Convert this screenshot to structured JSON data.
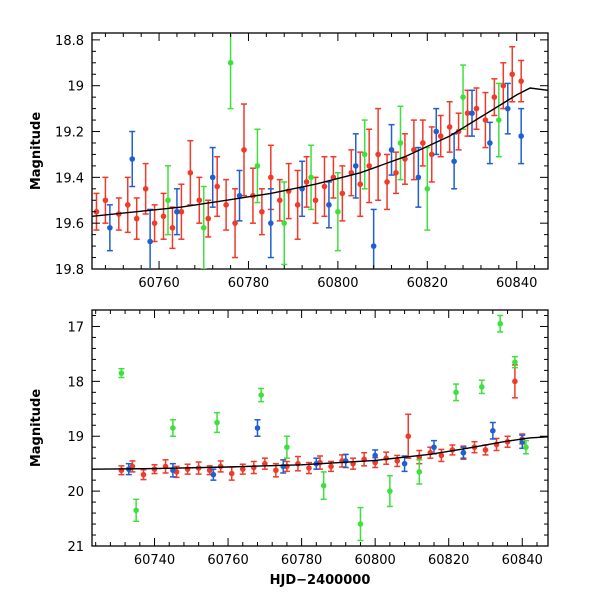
{
  "figure": {
    "xlabel": "HJD−2400000",
    "colors": {
      "blue": "#1f5fd0",
      "red": "#f03a2a",
      "green": "#3ee03e",
      "model": "#000000"
    }
  },
  "chart_data": [
    {
      "type": "scatter",
      "panel": "top",
      "title": "",
      "xlabel": "",
      "ylabel": "Magnitude",
      "xlim": [
        60745,
        60847
      ],
      "ylim": [
        19.8,
        18.77
      ],
      "y_inverted": true,
      "x_ticks": [
        60760,
        60780,
        60800,
        60820,
        60840
      ],
      "y_ticks": [
        18.8,
        19,
        19.2,
        19.4,
        19.6,
        19.8
      ],
      "x_tick_labels": [
        "60760",
        "60780",
        "60800",
        "60820",
        "60840"
      ],
      "y_tick_labels": [
        "18.8",
        "19",
        "19.2",
        "19.4",
        "19.6",
        "19.8"
      ],
      "grid": false,
      "series": [
        {
          "color": "red",
          "points": [
            [
              60746,
              19.55,
              0.08
            ],
            [
              60748,
              19.5,
              0.1
            ],
            [
              60751,
              19.56,
              0.07
            ],
            [
              60753,
              19.52,
              0.12
            ],
            [
              60755,
              19.58,
              0.09
            ],
            [
              60757,
              19.45,
              0.11
            ],
            [
              60759,
              19.6,
              0.08
            ],
            [
              60761,
              19.57,
              0.1
            ],
            [
              60763,
              19.62,
              0.09
            ],
            [
              60765,
              19.55,
              0.12
            ],
            [
              60767,
              19.38,
              0.14
            ],
            [
              60769,
              19.5,
              0.1
            ],
            [
              60771,
              19.58,
              0.08
            ],
            [
              60773,
              19.44,
              0.13
            ],
            [
              60775,
              19.52,
              0.11
            ],
            [
              60777,
              19.6,
              0.15
            ],
            [
              60779,
              19.28,
              0.2
            ],
            [
              60781,
              19.48,
              0.12
            ],
            [
              60783,
              19.55,
              0.1
            ],
            [
              60785,
              19.4,
              0.14
            ],
            [
              60787,
              19.5,
              0.09
            ],
            [
              60789,
              19.46,
              0.12
            ],
            [
              60791,
              19.52,
              0.15
            ],
            [
              60793,
              19.42,
              0.11
            ],
            [
              60795,
              19.5,
              0.1
            ],
            [
              60797,
              19.44,
              0.13
            ],
            [
              60799,
              19.4,
              0.09
            ],
            [
              60801,
              19.47,
              0.12
            ],
            [
              60803,
              19.38,
              0.1
            ],
            [
              60805,
              19.43,
              0.14
            ],
            [
              60807,
              19.35,
              0.16
            ],
            [
              60809,
              19.3,
              0.2
            ],
            [
              60811,
              19.42,
              0.12
            ],
            [
              60813,
              19.38,
              0.09
            ],
            [
              60815,
              19.32,
              0.11
            ],
            [
              60817,
              19.28,
              0.13
            ],
            [
              60819,
              19.25,
              0.1
            ],
            [
              60821,
              19.3,
              0.12
            ],
            [
              60823,
              19.22,
              0.09
            ],
            [
              60825,
              19.18,
              0.11
            ],
            [
              60827,
              19.2,
              0.08
            ],
            [
              60829,
              19.12,
              0.1
            ],
            [
              60831,
              19.1,
              0.09
            ],
            [
              60833,
              19.15,
              0.12
            ],
            [
              60835,
              19.05,
              0.08
            ],
            [
              60837,
              19.0,
              0.1
            ],
            [
              60839,
              18.95,
              0.12
            ],
            [
              60841,
              18.98,
              0.09
            ]
          ]
        },
        {
          "color": "blue",
          "points": [
            [
              60749,
              19.62,
              0.1
            ],
            [
              60754,
              19.32,
              0.12
            ],
            [
              60758,
              19.68,
              0.14
            ],
            [
              60764,
              19.55,
              0.1
            ],
            [
              60772,
              19.4,
              0.13
            ],
            [
              60778,
              19.48,
              0.11
            ],
            [
              60785,
              19.6,
              0.15
            ],
            [
              60792,
              19.45,
              0.12
            ],
            [
              60798,
              19.52,
              0.1
            ],
            [
              60804,
              19.35,
              0.14
            ],
            [
              60808,
              19.7,
              0.16
            ],
            [
              60812,
              19.28,
              0.11
            ],
            [
              60818,
              19.4,
              0.13
            ],
            [
              60822,
              19.2,
              0.1
            ],
            [
              60826,
              19.33,
              0.12
            ],
            [
              60830,
              19.12,
              0.1
            ],
            [
              60834,
              19.25,
              0.09
            ],
            [
              60838,
              19.1,
              0.11
            ],
            [
              60841,
              19.22,
              0.12
            ]
          ]
        },
        {
          "color": "green",
          "points": [
            [
              60762,
              19.5,
              0.15
            ],
            [
              60770,
              19.62,
              0.18
            ],
            [
              60776,
              18.9,
              0.2
            ],
            [
              60782,
              19.35,
              0.16
            ],
            [
              60788,
              19.6,
              0.18
            ],
            [
              60794,
              19.4,
              0.14
            ],
            [
              60800,
              19.55,
              0.17
            ],
            [
              60806,
              19.3,
              0.15
            ],
            [
              60814,
              19.25,
              0.16
            ],
            [
              60820,
              19.45,
              0.18
            ],
            [
              60828,
              19.05,
              0.14
            ],
            [
              60836,
              19.15,
              0.16
            ]
          ]
        }
      ],
      "model_curve": [
        [
          60745,
          19.57
        ],
        [
          60755,
          19.55
        ],
        [
          60765,
          19.53
        ],
        [
          60775,
          19.5
        ],
        [
          60785,
          19.47
        ],
        [
          60795,
          19.43
        ],
        [
          60805,
          19.38
        ],
        [
          60815,
          19.31
        ],
        [
          60825,
          19.22
        ],
        [
          60835,
          19.1
        ],
        [
          60840,
          19.04
        ],
        [
          60843,
          19.01
        ],
        [
          60847,
          19.02
        ]
      ]
    },
    {
      "type": "scatter",
      "panel": "bottom",
      "title": "",
      "xlabel": "HJD−2400000",
      "ylabel": "Magnitude",
      "xlim": [
        60723,
        60847
      ],
      "ylim": [
        21,
        16.7
      ],
      "y_inverted": true,
      "x_ticks": [
        60740,
        60760,
        60780,
        60800,
        60820,
        60840
      ],
      "y_ticks": [
        17,
        18,
        19,
        20,
        21
      ],
      "x_tick_labels": [
        "60740",
        "60760",
        "60780",
        "60800",
        "60820",
        "60840"
      ],
      "y_tick_labels": [
        "17",
        "18",
        "19",
        "20",
        "21"
      ],
      "grid": false,
      "series": [
        {
          "color": "red",
          "points": [
            [
              60731,
              19.62,
              0.08
            ],
            [
              60734,
              19.55,
              0.1
            ],
            [
              60737,
              19.7,
              0.09
            ],
            [
              60740,
              19.6,
              0.08
            ],
            [
              60743,
              19.55,
              0.12
            ],
            [
              60746,
              19.65,
              0.1
            ],
            [
              60749,
              19.6,
              0.09
            ],
            [
              60752,
              19.58,
              0.11
            ],
            [
              60755,
              19.62,
              0.08
            ],
            [
              60758,
              19.55,
              0.1
            ],
            [
              60761,
              19.68,
              0.12
            ],
            [
              60764,
              19.6,
              0.09
            ],
            [
              60767,
              19.57,
              0.11
            ],
            [
              60770,
              19.5,
              0.1
            ],
            [
              60773,
              19.62,
              0.12
            ],
            [
              60776,
              19.55,
              0.09
            ],
            [
              60779,
              19.5,
              0.13
            ],
            [
              60782,
              19.58,
              0.1
            ],
            [
              60785,
              19.48,
              0.12
            ],
            [
              60788,
              19.55,
              0.09
            ],
            [
              60791,
              19.45,
              0.11
            ],
            [
              60794,
              19.5,
              0.1
            ],
            [
              60797,
              19.42,
              0.12
            ],
            [
              60800,
              19.48,
              0.09
            ],
            [
              60803,
              19.4,
              0.11
            ],
            [
              60806,
              19.45,
              0.1
            ],
            [
              60809,
              19.0,
              0.4
            ],
            [
              60812,
              19.38,
              0.12
            ],
            [
              60815,
              19.3,
              0.1
            ],
            [
              60818,
              19.35,
              0.11
            ],
            [
              60821,
              19.25,
              0.09
            ],
            [
              60824,
              19.3,
              0.12
            ],
            [
              60827,
              19.2,
              0.1
            ],
            [
              60830,
              19.25,
              0.09
            ],
            [
              60833,
              19.15,
              0.11
            ],
            [
              60836,
              19.1,
              0.1
            ],
            [
              60838,
              18.0,
              0.3
            ],
            [
              60840,
              19.05,
              0.09
            ]
          ]
        },
        {
          "color": "blue",
          "points": [
            [
              60733,
              19.6,
              0.1
            ],
            [
              60745,
              19.62,
              0.12
            ],
            [
              60756,
              19.7,
              0.1
            ],
            [
              60768,
              18.85,
              0.15
            ],
            [
              60775,
              19.55,
              0.12
            ],
            [
              60784,
              19.5,
              0.1
            ],
            [
              60792,
              19.45,
              0.12
            ],
            [
              60800,
              19.35,
              0.1
            ],
            [
              60808,
              19.5,
              0.14
            ],
            [
              60816,
              19.2,
              0.12
            ],
            [
              60824,
              19.3,
              0.1
            ],
            [
              60832,
              18.9,
              0.15
            ],
            [
              60840,
              19.1,
              0.12
            ]
          ]
        },
        {
          "color": "green",
          "points": [
            [
              60731,
              17.85,
              0.08
            ],
            [
              60735,
              20.35,
              0.2
            ],
            [
              60745,
              18.85,
              0.15
            ],
            [
              60757,
              18.75,
              0.18
            ],
            [
              60769,
              18.25,
              0.12
            ],
            [
              60776,
              19.2,
              0.2
            ],
            [
              60786,
              19.9,
              0.25
            ],
            [
              60796,
              20.6,
              0.3
            ],
            [
              60804,
              20.0,
              0.28
            ],
            [
              60812,
              19.65,
              0.22
            ],
            [
              60822,
              18.2,
              0.15
            ],
            [
              60829,
              18.1,
              0.12
            ],
            [
              60834,
              16.95,
              0.15
            ],
            [
              60838,
              17.65,
              0.1
            ],
            [
              60841,
              19.2,
              0.12
            ]
          ]
        }
      ],
      "model_curve": [
        [
          60723,
          19.6
        ],
        [
          60740,
          19.59
        ],
        [
          60760,
          19.56
        ],
        [
          60780,
          19.52
        ],
        [
          60800,
          19.44
        ],
        [
          60815,
          19.33
        ],
        [
          60825,
          19.22
        ],
        [
          60835,
          19.1
        ],
        [
          60842,
          19.03
        ],
        [
          60847,
          19.01
        ]
      ]
    }
  ]
}
